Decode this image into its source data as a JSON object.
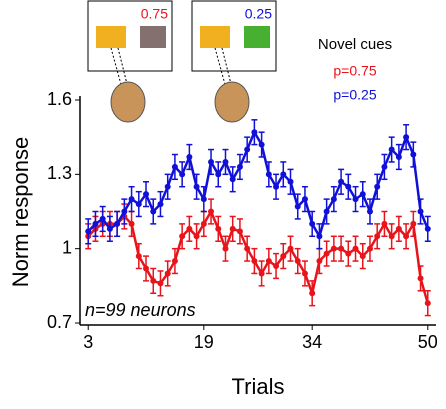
{
  "chart_data": {
    "type": "line",
    "screen_labels": [
      "0.75",
      "0.25"
    ],
    "legend_title": "Novel cues",
    "annotation": "n=99 neurons",
    "x_label": "Trials",
    "y_label": "Norm response",
    "x": [
      3,
      4,
      5,
      6,
      7,
      8,
      9,
      10,
      11,
      12,
      13,
      14,
      15,
      16,
      17,
      18,
      19,
      20,
      21,
      22,
      23,
      24,
      25,
      26,
      27,
      28,
      29,
      30,
      31,
      32,
      33,
      34,
      35,
      36,
      37,
      38,
      39,
      40,
      41,
      42,
      43,
      44,
      45,
      46,
      47,
      48,
      49,
      50
    ],
    "series": [
      {
        "name": "p=0.75",
        "color": "#e8141b",
        "error": 0.05,
        "values": [
          1.05,
          1.08,
          1.1,
          1.1,
          1.1,
          1.13,
          1.1,
          0.97,
          0.92,
          0.87,
          0.86,
          0.9,
          0.95,
          1.05,
          1.08,
          1.05,
          1.1,
          1.15,
          1.08,
          1.0,
          1.08,
          1.07,
          1.0,
          0.95,
          0.9,
          0.95,
          0.93,
          0.97,
          1.0,
          0.95,
          0.9,
          0.82,
          0.95,
          0.98,
          1.0,
          1.0,
          0.98,
          1.0,
          0.97,
          1.0,
          1.05,
          1.1,
          1.05,
          1.08,
          1.05,
          1.1,
          0.88,
          0.78
        ]
      },
      {
        "name": "p=0.25",
        "color": "#1010d8",
        "error": 0.05,
        "values": [
          1.07,
          1.1,
          1.12,
          1.08,
          1.1,
          1.15,
          1.2,
          1.18,
          1.22,
          1.15,
          1.18,
          1.25,
          1.33,
          1.3,
          1.37,
          1.25,
          1.2,
          1.35,
          1.3,
          1.35,
          1.28,
          1.33,
          1.4,
          1.47,
          1.42,
          1.3,
          1.25,
          1.3,
          1.27,
          1.17,
          1.2,
          1.1,
          1.05,
          1.15,
          1.2,
          1.27,
          1.25,
          1.2,
          1.22,
          1.15,
          1.25,
          1.33,
          1.4,
          1.37,
          1.45,
          1.38,
          1.15,
          1.08
        ]
      }
    ],
    "xlim": [
      2,
      51
    ],
    "xticks": [
      3,
      19,
      34,
      50
    ],
    "ylim": [
      0.7,
      1.6
    ],
    "yticks": [
      0.7,
      1,
      1.3,
      1.6
    ]
  }
}
